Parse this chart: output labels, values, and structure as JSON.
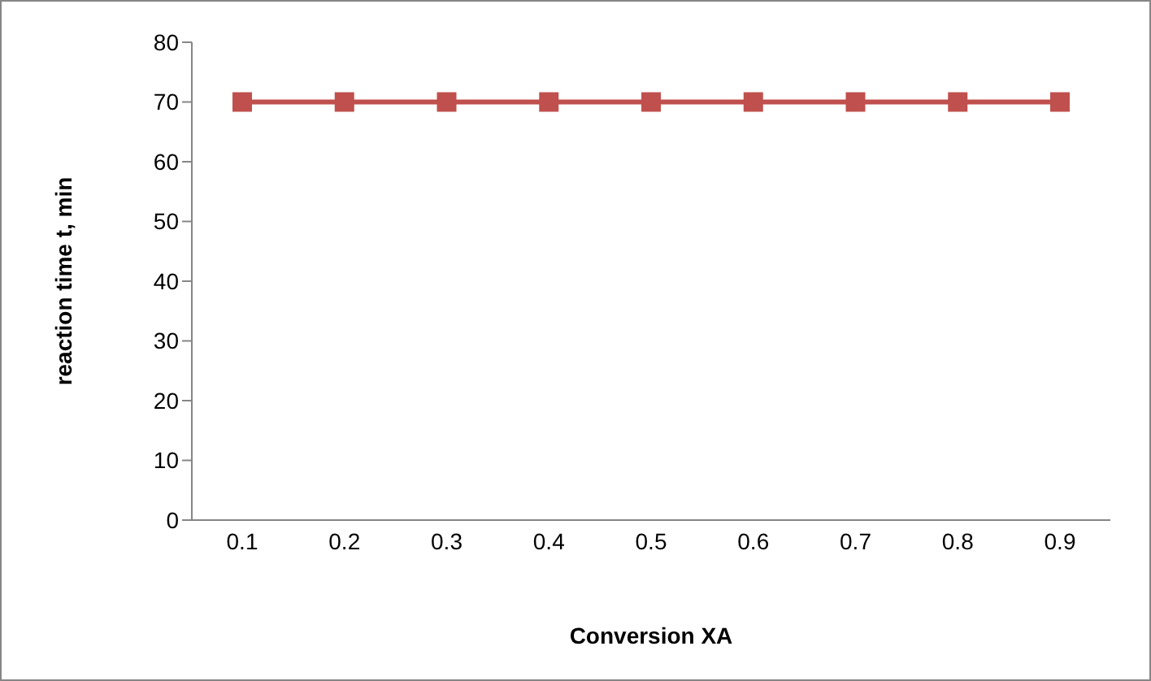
{
  "chart_data": {
    "type": "line",
    "xlabel": "Conversion XA",
    "ylabel": "reaction time t, min",
    "categories": [
      "0.1",
      "0.2",
      "0.3",
      "0.4",
      "0.5",
      "0.6",
      "0.7",
      "0.8",
      "0.9"
    ],
    "series": [
      {
        "color": "#c0504d",
        "values": [
          70,
          70,
          70,
          70,
          70,
          70,
          70,
          70,
          70
        ]
      }
    ],
    "ylim": [
      0,
      80
    ],
    "yticks": [
      0,
      10,
      20,
      30,
      40,
      50,
      60,
      70,
      80
    ],
    "marker": "square",
    "line_style": "solid"
  }
}
